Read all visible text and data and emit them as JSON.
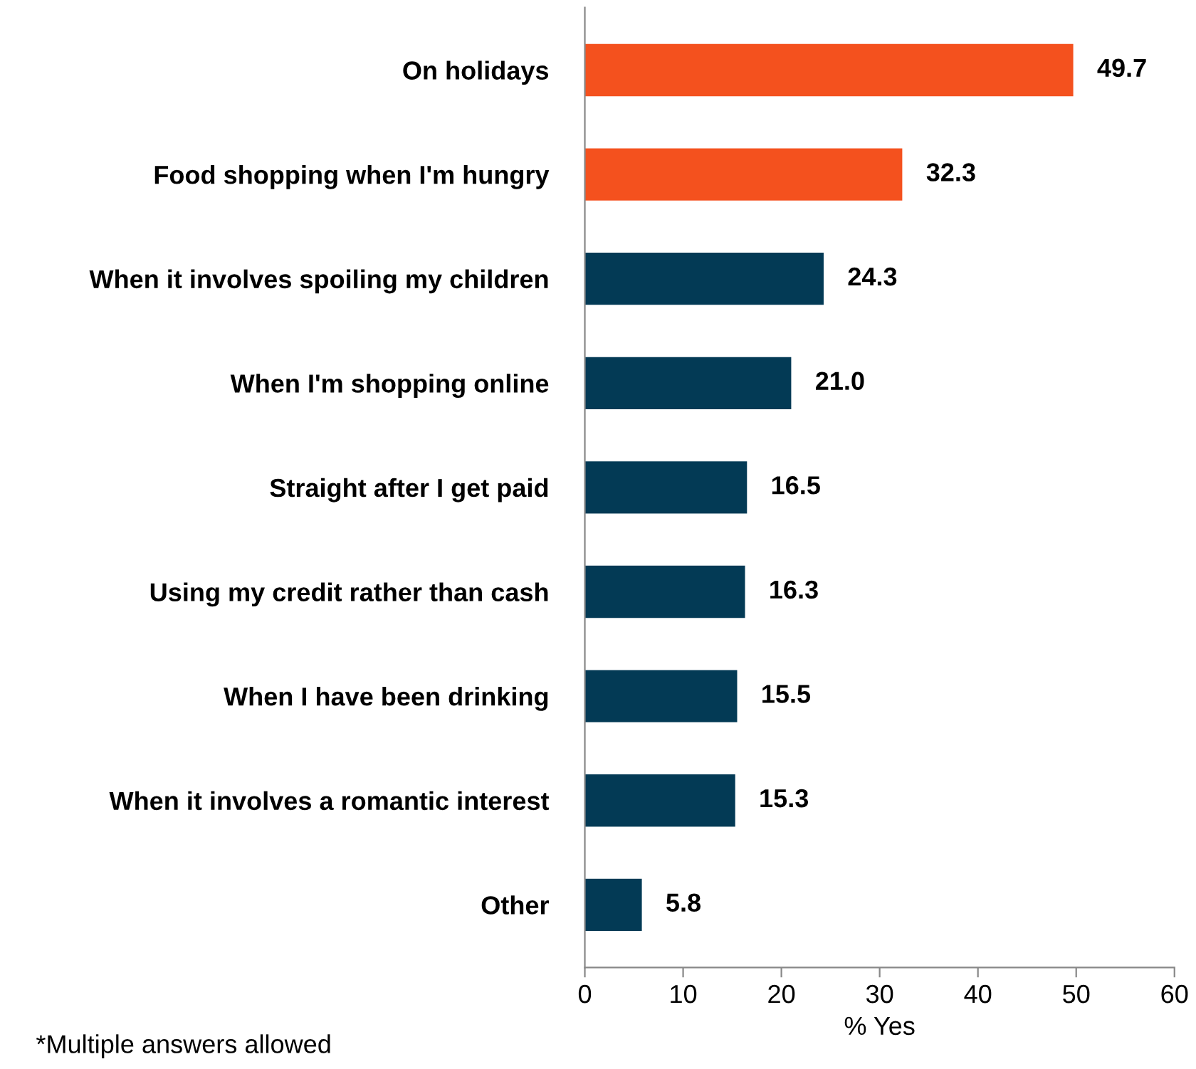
{
  "chart_data": {
    "type": "bar",
    "orientation": "horizontal",
    "xlabel": "% Yes",
    "categories": [
      "On holidays",
      "Food shopping when I'm hungry",
      "When it involves spoiling my children",
      "When I'm shopping online",
      "Straight after I get paid",
      "Using my credit rather than cash",
      "When I have been drinking",
      "When it involves a romantic interest",
      "Other"
    ],
    "values": [
      49.7,
      32.3,
      24.3,
      21.0,
      16.5,
      16.3,
      15.5,
      15.3,
      5.8
    ],
    "value_labels": [
      "49.7",
      "32.3",
      "24.3",
      "21.0",
      "16.5",
      "16.3",
      "15.5",
      "15.3",
      "5.8"
    ],
    "colors": [
      "#f4511e",
      "#f4511e",
      "#033a55",
      "#033a55",
      "#033a55",
      "#033a55",
      "#033a55",
      "#033a55",
      "#033a55"
    ],
    "xlim": [
      0,
      60
    ],
    "xticks": [
      0,
      10,
      20,
      30,
      40,
      50,
      60
    ],
    "grid": false,
    "annotations": [
      "*Multiple answers allowed"
    ]
  }
}
